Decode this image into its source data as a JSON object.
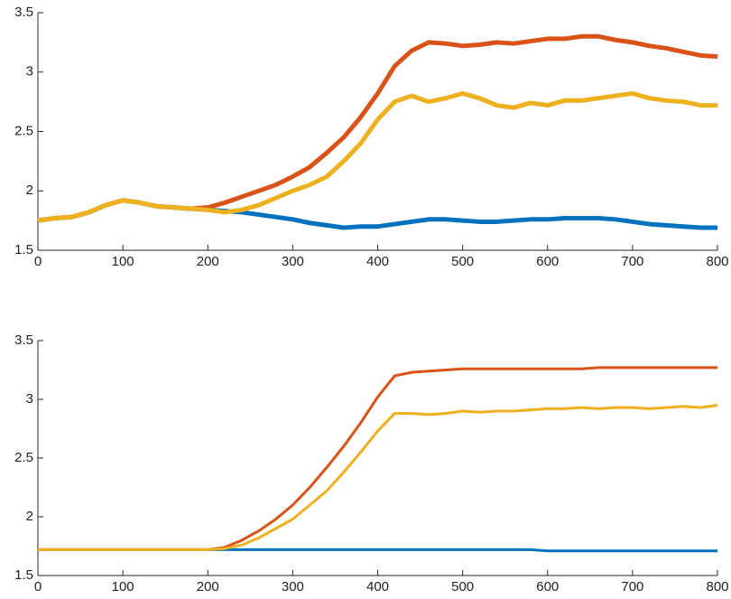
{
  "chart_data": [
    {
      "type": "line",
      "x": [
        0,
        20,
        40,
        60,
        80,
        100,
        120,
        140,
        160,
        180,
        200,
        220,
        240,
        260,
        280,
        300,
        320,
        340,
        360,
        380,
        400,
        420,
        440,
        460,
        480,
        500,
        520,
        540,
        560,
        580,
        600,
        620,
        640,
        660,
        680,
        700,
        720,
        740,
        760,
        780,
        800
      ],
      "series": [
        {
          "color": "#0072BD",
          "values": [
            1.75,
            1.77,
            1.78,
            1.82,
            1.88,
            1.92,
            1.9,
            1.87,
            1.86,
            1.85,
            1.84,
            1.83,
            1.82,
            1.8,
            1.78,
            1.76,
            1.73,
            1.71,
            1.69,
            1.7,
            1.7,
            1.72,
            1.74,
            1.76,
            1.76,
            1.75,
            1.74,
            1.74,
            1.75,
            1.76,
            1.76,
            1.77,
            1.77,
            1.77,
            1.76,
            1.74,
            1.72,
            1.71,
            1.7,
            1.69,
            1.69
          ]
        },
        {
          "color": "#D95319",
          "values": [
            1.75,
            1.77,
            1.78,
            1.82,
            1.88,
            1.92,
            1.9,
            1.87,
            1.86,
            1.85,
            1.86,
            1.9,
            1.95,
            2.0,
            2.05,
            2.12,
            2.2,
            2.32,
            2.45,
            2.62,
            2.82,
            3.05,
            3.18,
            3.25,
            3.24,
            3.22,
            3.23,
            3.25,
            3.24,
            3.26,
            3.28,
            3.28,
            3.3,
            3.3,
            3.27,
            3.25,
            3.22,
            3.2,
            3.17,
            3.14,
            3.13
          ]
        },
        {
          "color": "#EDB120",
          "values": [
            1.75,
            1.77,
            1.78,
            1.82,
            1.88,
            1.92,
            1.9,
            1.87,
            1.86,
            1.85,
            1.84,
            1.82,
            1.84,
            1.88,
            1.94,
            2.0,
            2.05,
            2.12,
            2.25,
            2.4,
            2.6,
            2.75,
            2.8,
            2.75,
            2.78,
            2.82,
            2.78,
            2.72,
            2.7,
            2.74,
            2.72,
            2.76,
            2.76,
            2.78,
            2.8,
            2.82,
            2.78,
            2.76,
            2.75,
            2.72,
            2.72
          ]
        }
      ],
      "xlim": [
        0,
        800
      ],
      "xticks": [
        0,
        100,
        200,
        300,
        400,
        500,
        600,
        700,
        800
      ],
      "ylim": [
        1.5,
        3.5
      ],
      "yticks": [
        1.5,
        2,
        2.5,
        3,
        3.5
      ]
    },
    {
      "type": "line",
      "x": [
        0,
        20,
        40,
        60,
        80,
        100,
        120,
        140,
        160,
        180,
        200,
        220,
        240,
        260,
        280,
        300,
        320,
        340,
        360,
        380,
        400,
        420,
        440,
        460,
        480,
        500,
        520,
        540,
        560,
        580,
        600,
        620,
        640,
        660,
        680,
        700,
        720,
        740,
        760,
        780,
        800
      ],
      "series": [
        {
          "color": "#0072BD",
          "values": [
            1.72,
            1.72,
            1.72,
            1.72,
            1.72,
            1.72,
            1.72,
            1.72,
            1.72,
            1.72,
            1.72,
            1.72,
            1.72,
            1.72,
            1.72,
            1.72,
            1.72,
            1.72,
            1.72,
            1.72,
            1.72,
            1.72,
            1.72,
            1.72,
            1.72,
            1.72,
            1.72,
            1.72,
            1.72,
            1.72,
            1.71,
            1.71,
            1.71,
            1.71,
            1.71,
            1.71,
            1.71,
            1.71,
            1.71,
            1.71,
            1.71
          ]
        },
        {
          "color": "#D95319",
          "values": [
            1.72,
            1.72,
            1.72,
            1.72,
            1.72,
            1.72,
            1.72,
            1.72,
            1.72,
            1.72,
            1.72,
            1.74,
            1.8,
            1.88,
            1.98,
            2.1,
            2.25,
            2.42,
            2.6,
            2.8,
            3.02,
            3.2,
            3.23,
            3.24,
            3.25,
            3.26,
            3.26,
            3.26,
            3.26,
            3.26,
            3.26,
            3.26,
            3.26,
            3.27,
            3.27,
            3.27,
            3.27,
            3.27,
            3.27,
            3.27,
            3.27
          ]
        },
        {
          "color": "#EDB120",
          "values": [
            1.72,
            1.72,
            1.72,
            1.72,
            1.72,
            1.72,
            1.72,
            1.72,
            1.72,
            1.72,
            1.72,
            1.73,
            1.76,
            1.82,
            1.9,
            1.98,
            2.1,
            2.22,
            2.38,
            2.55,
            2.73,
            2.88,
            2.88,
            2.87,
            2.88,
            2.9,
            2.89,
            2.9,
            2.9,
            2.91,
            2.92,
            2.92,
            2.93,
            2.92,
            2.93,
            2.93,
            2.92,
            2.93,
            2.94,
            2.93,
            2.95
          ]
        }
      ],
      "xlim": [
        0,
        800
      ],
      "xticks": [
        0,
        100,
        200,
        300,
        400,
        500,
        600,
        700,
        800
      ],
      "ylim": [
        1.5,
        3.5
      ],
      "yticks": [
        1.5,
        2,
        2.5,
        3,
        3.5
      ]
    }
  ]
}
